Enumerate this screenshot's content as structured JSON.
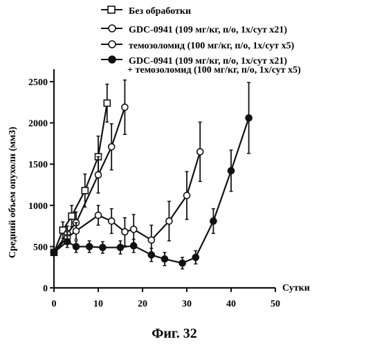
{
  "caption": "Фиг. 32",
  "chart_data": {
    "type": "line",
    "xlabel": "Сутки",
    "ylabel": "Средний объем опухоли (мм3)",
    "xlim": [
      0,
      50
    ],
    "ylim": [
      0,
      2500
    ],
    "x_ticks": [
      "0",
      "10",
      "20",
      "30",
      "40",
      "50"
    ],
    "y_ticks": [
      "0",
      "500",
      "1000",
      "1500",
      "2000",
      "2500"
    ],
    "legend_position": "top-right",
    "grid": false,
    "series": [
      {
        "name": "Без обработки",
        "marker": "square-open",
        "x": [
          0,
          2,
          4,
          7,
          10,
          12
        ],
        "y": [
          430,
          700,
          870,
          1180,
          1590,
          2240
        ],
        "err": [
          30,
          100,
          130,
          200,
          250,
          230
        ]
      },
      {
        "name": "GDC-0941 (109 мг/кг, п/о, 1х/сут х21)",
        "marker": "circle-open",
        "x": [
          0,
          3,
          5,
          10,
          13,
          16
        ],
        "y": [
          430,
          660,
          790,
          1370,
          1710,
          2190
        ],
        "err": [
          30,
          90,
          130,
          220,
          280,
          330
        ]
      },
      {
        "name": "темозоломид (100 мг/кг, п/о, 1х/сут х5)",
        "marker": "circle-open",
        "x": [
          0,
          3,
          5,
          10,
          13,
          16,
          18,
          22,
          26,
          30,
          33
        ],
        "y": [
          430,
          610,
          690,
          880,
          810,
          680,
          710,
          580,
          810,
          1120,
          1650
        ],
        "err": [
          30,
          70,
          100,
          120,
          150,
          170,
          180,
          180,
          240,
          290,
          360
        ]
      },
      {
        "name": "GDC-0941 (109 мг/кг, п/о, 1х/сут х21)",
        "name_cont": "+ темозоломид (100 мг/кг, п/о, 1х/сут х5)",
        "marker": "circle-filled",
        "x": [
          0,
          3,
          5,
          8,
          11,
          15,
          18,
          22,
          25,
          29,
          32,
          36,
          40,
          44
        ],
        "y": [
          430,
          560,
          500,
          500,
          490,
          490,
          510,
          400,
          350,
          300,
          370,
          810,
          1420,
          2060
        ],
        "err": [
          30,
          70,
          70,
          70,
          70,
          80,
          80,
          80,
          80,
          70,
          80,
          150,
          250,
          430
        ]
      }
    ]
  }
}
